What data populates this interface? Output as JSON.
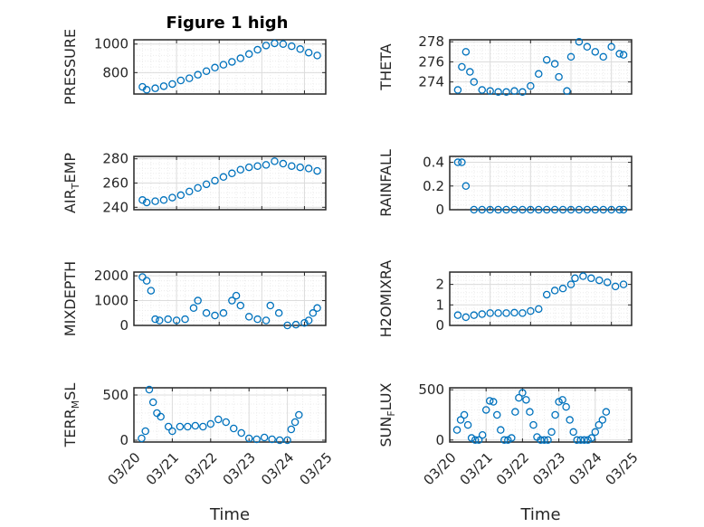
{
  "figure": {
    "title": "Figure 1 high"
  },
  "colors": {
    "marker": "#0072BD",
    "axis": "#262626",
    "grid_major": "#dcdcdc",
    "grid_minor": "#ececec"
  },
  "chart_data": [
    {
      "type": "scatter",
      "title": "Figure 1 high",
      "ylabel": "PRESSURE",
      "xlabel": "",
      "xlim": [
        "03/20",
        "03/24.5"
      ],
      "ylim": [
        650,
        1030
      ],
      "yticks": [
        800,
        1000
      ],
      "x": [
        "03/20.2",
        "03/20.3",
        "03/20.5",
        "03/20.7",
        "03/20.9",
        "03/21.1",
        "03/21.3",
        "03/21.5",
        "03/21.7",
        "03/21.9",
        "03/22.1",
        "03/22.3",
        "03/22.5",
        "03/22.7",
        "03/22.9",
        "03/23.1",
        "03/23.3",
        "03/23.5",
        "03/23.7",
        "03/23.9",
        "03/24.1",
        "03/24.3"
      ],
      "y": [
        700,
        680,
        690,
        705,
        720,
        745,
        760,
        785,
        810,
        835,
        855,
        875,
        900,
        930,
        960,
        990,
        1005,
        1000,
        985,
        965,
        940,
        920
      ]
    },
    {
      "type": "scatter",
      "ylabel": "THETA",
      "xlabel": "",
      "xlim": [
        "03/20",
        "03/24.5"
      ],
      "ylim": [
        272.8,
        278.2
      ],
      "yticks": [
        274,
        276,
        278
      ],
      "x": [
        "03/20.2",
        "03/20.3",
        "03/20.4",
        "03/20.5",
        "03/20.6",
        "03/20.8",
        "03/21.0",
        "03/21.2",
        "03/21.4",
        "03/21.6",
        "03/21.8",
        "03/22.0",
        "03/22.2",
        "03/22.4",
        "03/22.6",
        "03/22.7",
        "03/22.9",
        "03/23.0",
        "03/23.2",
        "03/23.4",
        "03/23.6",
        "03/23.8",
        "03/24.0",
        "03/24.2",
        "03/24.3"
      ],
      "y": [
        273.2,
        275.5,
        277.0,
        275.0,
        274.0,
        273.2,
        273.1,
        273.0,
        273.0,
        273.1,
        273.0,
        273.6,
        274.8,
        276.2,
        275.8,
        274.5,
        273.1,
        276.5,
        278.0,
        277.5,
        277.0,
        276.5,
        277.5,
        276.8,
        276.7
      ]
    },
    {
      "type": "scatter",
      "ylabel": "AIR_TEMP",
      "xlabel": "",
      "xlim": [
        "03/20",
        "03/24.5"
      ],
      "ylim": [
        238,
        282
      ],
      "yticks": [
        240,
        260,
        280
      ],
      "x": [
        "03/20.2",
        "03/20.3",
        "03/20.5",
        "03/20.7",
        "03/20.9",
        "03/21.1",
        "03/21.3",
        "03/21.5",
        "03/21.7",
        "03/21.9",
        "03/22.1",
        "03/22.3",
        "03/22.5",
        "03/22.7",
        "03/22.9",
        "03/23.1",
        "03/23.3",
        "03/23.5",
        "03/23.7",
        "03/23.9",
        "03/24.1",
        "03/24.3"
      ],
      "y": [
        246,
        244,
        245,
        246,
        248,
        250,
        253,
        256,
        259,
        262,
        265,
        268,
        271,
        273,
        274,
        275,
        278,
        276,
        274,
        273,
        272,
        270
      ]
    },
    {
      "type": "scatter",
      "ylabel": "RAINFALL",
      "xlabel": "",
      "xlim": [
        "03/20",
        "03/24.5"
      ],
      "ylim": [
        0,
        0.45
      ],
      "yticks": [
        0,
        0.2,
        0.4
      ],
      "x": [
        "03/20.2",
        "03/20.3",
        "03/20.4",
        "03/20.6",
        "03/20.8",
        "03/21.0",
        "03/21.2",
        "03/21.4",
        "03/21.6",
        "03/21.8",
        "03/22.0",
        "03/22.2",
        "03/22.4",
        "03/22.6",
        "03/22.8",
        "03/23.0",
        "03/23.2",
        "03/23.4",
        "03/23.6",
        "03/23.8",
        "03/24.0",
        "03/24.2",
        "03/24.3"
      ],
      "y": [
        0.4,
        0.4,
        0.2,
        0,
        0,
        0,
        0,
        0,
        0,
        0,
        0,
        0,
        0,
        0,
        0,
        0,
        0,
        0,
        0,
        0,
        0,
        0,
        0
      ]
    },
    {
      "type": "scatter",
      "ylabel": "MIXDEPTH",
      "xlabel": "",
      "xlim": [
        "03/20",
        "03/24.5"
      ],
      "ylim": [
        0,
        2150
      ],
      "yticks": [
        0,
        1000,
        2000
      ],
      "x": [
        "03/20.2",
        "03/20.3",
        "03/20.4",
        "03/20.5",
        "03/20.6",
        "03/20.8",
        "03/21.0",
        "03/21.2",
        "03/21.4",
        "03/21.5",
        "03/21.7",
        "03/21.9",
        "03/22.1",
        "03/22.3",
        "03/22.4",
        "03/22.5",
        "03/22.7",
        "03/22.9",
        "03/23.1",
        "03/23.2",
        "03/23.4",
        "03/23.6",
        "03/23.8",
        "03/24.0",
        "03/24.1",
        "03/24.2",
        "03/24.3"
      ],
      "y": [
        1950,
        1800,
        1400,
        250,
        200,
        250,
        200,
        250,
        700,
        1000,
        500,
        400,
        500,
        1000,
        1200,
        800,
        350,
        250,
        200,
        800,
        500,
        0,
        30,
        100,
        200,
        500,
        700
      ]
    },
    {
      "type": "scatter",
      "ylabel": "H2OMIXRA",
      "xlabel": "",
      "xlim": [
        "03/20",
        "03/24.5"
      ],
      "ylim": [
        0,
        2.6
      ],
      "yticks": [
        0,
        1,
        2
      ],
      "x": [
        "03/20.2",
        "03/20.4",
        "03/20.6",
        "03/20.8",
        "03/21.0",
        "03/21.2",
        "03/21.4",
        "03/21.6",
        "03/21.8",
        "03/22.0",
        "03/22.2",
        "03/22.4",
        "03/22.6",
        "03/22.8",
        "03/23.0",
        "03/23.1",
        "03/23.3",
        "03/23.5",
        "03/23.7",
        "03/23.9",
        "03/24.1",
        "03/24.3"
      ],
      "y": [
        0.5,
        0.4,
        0.5,
        0.55,
        0.6,
        0.6,
        0.6,
        0.62,
        0.6,
        0.7,
        0.8,
        1.5,
        1.7,
        1.8,
        2.0,
        2.3,
        2.4,
        2.3,
        2.2,
        2.1,
        1.9,
        2.0
      ]
    },
    {
      "type": "scatter",
      "ylabel": "TERR_MSL",
      "xlabel": "Time",
      "xlim": [
        "03/20",
        "03/25"
      ],
      "xticks": [
        "03/20",
        "03/21",
        "03/22",
        "03/23",
        "03/24",
        "03/25"
      ],
      "ylim": [
        -20,
        580
      ],
      "yticks": [
        0,
        500
      ],
      "x": [
        "03/20.2",
        "03/20.3",
        "03/20.4",
        "03/20.5",
        "03/20.6",
        "03/20.7",
        "03/20.9",
        "03/21.0",
        "03/21.2",
        "03/21.4",
        "03/21.6",
        "03/21.8",
        "03/22.0",
        "03/22.2",
        "03/22.4",
        "03/22.6",
        "03/22.8",
        "03/23.0",
        "03/23.2",
        "03/23.4",
        "03/23.6",
        "03/23.8",
        "03/24.0",
        "03/24.1",
        "03/24.2",
        "03/24.3"
      ],
      "y": [
        20,
        100,
        560,
        420,
        300,
        260,
        150,
        100,
        150,
        150,
        160,
        150,
        180,
        230,
        200,
        130,
        80,
        20,
        10,
        30,
        10,
        0,
        0,
        120,
        200,
        280
      ]
    },
    {
      "type": "scatter",
      "ylabel": "SUN_FLUX",
      "xlabel": "Time",
      "xlim": [
        "03/20",
        "03/25"
      ],
      "xticks": [
        "03/20",
        "03/21",
        "03/22",
        "03/23",
        "03/24",
        "03/25"
      ],
      "ylim": [
        -20,
        520
      ],
      "yticks": [
        0,
        500
      ],
      "x": [
        "03/20.2",
        "03/20.3",
        "03/20.4",
        "03/20.5",
        "03/20.6",
        "03/20.7",
        "03/20.8",
        "03/20.9",
        "03/21.0",
        "03/21.1",
        "03/21.2",
        "03/21.3",
        "03/21.4",
        "03/21.5",
        "03/21.6",
        "03/21.7",
        "03/21.8",
        "03/21.9",
        "03/22.0",
        "03/22.1",
        "03/22.2",
        "03/22.3",
        "03/22.4",
        "03/22.5",
        "03/22.6",
        "03/22.7",
        "03/22.8",
        "03/22.9",
        "03/23.0",
        "03/23.1",
        "03/23.2",
        "03/23.3",
        "03/23.4",
        "03/23.5",
        "03/23.6",
        "03/23.7",
        "03/23.8",
        "03/23.9",
        "03/24.0",
        "03/24.1",
        "03/24.2",
        "03/24.3"
      ],
      "y": [
        100,
        200,
        250,
        150,
        20,
        0,
        0,
        50,
        300,
        390,
        380,
        250,
        100,
        0,
        0,
        20,
        280,
        420,
        470,
        400,
        280,
        150,
        30,
        0,
        0,
        0,
        80,
        250,
        380,
        400,
        330,
        200,
        80,
        0,
        0,
        0,
        0,
        20,
        80,
        150,
        200,
        280
      ]
    }
  ]
}
